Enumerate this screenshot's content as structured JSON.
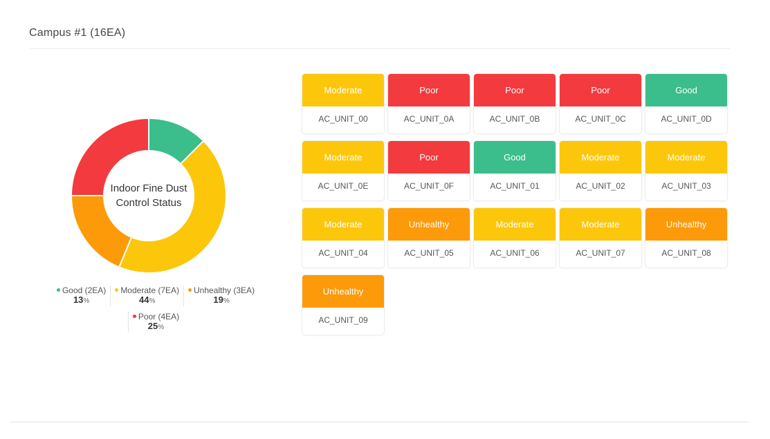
{
  "header": {
    "title": "Campus #1 (16EA)"
  },
  "donut": {
    "center_label": "Indoor Fine Dust Control Status",
    "segments": [
      {
        "key": "good",
        "count": 2,
        "color": "#3bbd8c"
      },
      {
        "key": "moderate",
        "count": 7,
        "color": "#fcc70b"
      },
      {
        "key": "unhealthy",
        "count": 3,
        "color": "#fd9a0a"
      },
      {
        "key": "poor",
        "count": 4,
        "color": "#f33a3f"
      }
    ]
  },
  "legend": {
    "good": {
      "label": "Good (2EA)",
      "value": "13",
      "unit": "%",
      "color": "#3bbd8c"
    },
    "moderate": {
      "label": "Moderate (7EA)",
      "value": "44",
      "unit": "%",
      "color": "#fcc70b"
    },
    "unhealthy": {
      "label": "Unhealthy (3EA)",
      "value": "19",
      "unit": "%",
      "color": "#fd9a0a"
    },
    "poor": {
      "label": "Poor (4EA)",
      "value": "25",
      "unit": "%",
      "color": "#f33a3f"
    }
  },
  "units": [
    {
      "status": "Moderate",
      "level": "moderate",
      "name": "AC_UNIT_00"
    },
    {
      "status": "Poor",
      "level": "poor",
      "name": "AC_UNIT_0A"
    },
    {
      "status": "Poor",
      "level": "poor",
      "name": "AC_UNIT_0B"
    },
    {
      "status": "Poor",
      "level": "poor",
      "name": "AC_UNIT_0C"
    },
    {
      "status": "Good",
      "level": "good",
      "name": "AC_UNIT_0D"
    },
    {
      "status": "Moderate",
      "level": "moderate",
      "name": "AC_UNIT_0E"
    },
    {
      "status": "Poor",
      "level": "poor",
      "name": "AC_UNIT_0F"
    },
    {
      "status": "Good",
      "level": "good",
      "name": "AC_UNIT_01"
    },
    {
      "status": "Moderate",
      "level": "moderate",
      "name": "AC_UNIT_02"
    },
    {
      "status": "Moderate",
      "level": "moderate",
      "name": "AC_UNIT_03"
    },
    {
      "status": "Moderate",
      "level": "moderate",
      "name": "AC_UNIT_04"
    },
    {
      "status": "Unhealthy",
      "level": "unhealthy",
      "name": "AC_UNIT_05"
    },
    {
      "status": "Moderate",
      "level": "moderate",
      "name": "AC_UNIT_06"
    },
    {
      "status": "Moderate",
      "level": "moderate",
      "name": "AC_UNIT_07"
    },
    {
      "status": "Unhealthy",
      "level": "unhealthy",
      "name": "AC_UNIT_08"
    },
    {
      "status": "Unhealthy",
      "level": "unhealthy",
      "name": "AC_UNIT_09"
    }
  ]
}
